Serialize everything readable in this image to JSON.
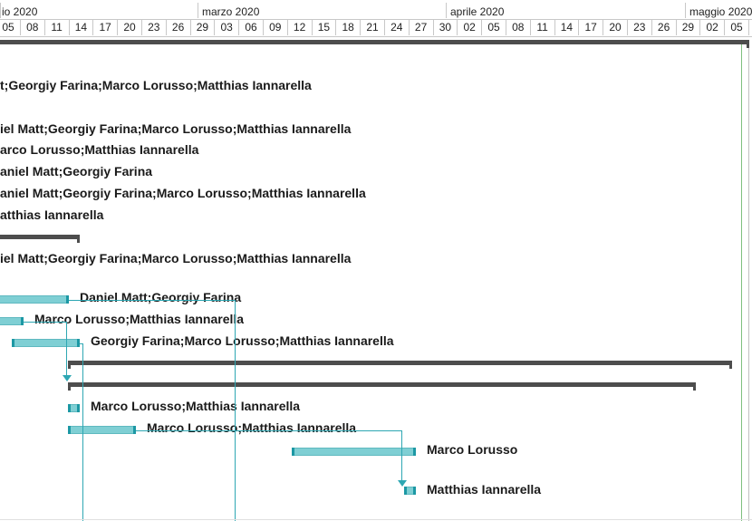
{
  "timescale": {
    "months": [
      "io 2020",
      "marzo 2020",
      "aprile 2020",
      "maggio 2020"
    ],
    "days": [
      "05",
      "08",
      "11",
      "14",
      "17",
      "20",
      "23",
      "26",
      "29",
      "03",
      "06",
      "09",
      "12",
      "15",
      "18",
      "21",
      "24",
      "27",
      "30",
      "02",
      "05",
      "08",
      "11",
      "14",
      "17",
      "20",
      "23",
      "26",
      "29",
      "02",
      "05",
      "0"
    ]
  },
  "rows": [
    {
      "label": "t;Georgiy Farina;Marco Lorusso;Matthias Iannarella"
    },
    {
      "label": "iel Matt;Georgiy Farina;Marco Lorusso;Matthias Iannarella"
    },
    {
      "label": "arco Lorusso;Matthias Iannarella"
    },
    {
      "label": "aniel Matt;Georgiy Farina"
    },
    {
      "label": "aniel Matt;Georgiy Farina;Marco Lorusso;Matthias Iannarella"
    },
    {
      "label": "atthias Iannarella"
    },
    {
      "label": "iel Matt;Georgiy Farina;Marco Lorusso;Matthias Iannarella"
    },
    {
      "label": "Daniel Matt;Georgiy Farina"
    },
    {
      "label": "Marco Lorusso;Matthias Iannarella"
    },
    {
      "label": "Georgiy Farina;Marco Lorusso;Matthias Iannarella"
    },
    {
      "label": "Marco Lorusso;Matthias Iannarella"
    },
    {
      "label": "Marco Lorusso;Matthias Iannarella"
    },
    {
      "label": "Marco Lorusso"
    },
    {
      "label": "Matthias Iannarella"
    }
  ]
}
